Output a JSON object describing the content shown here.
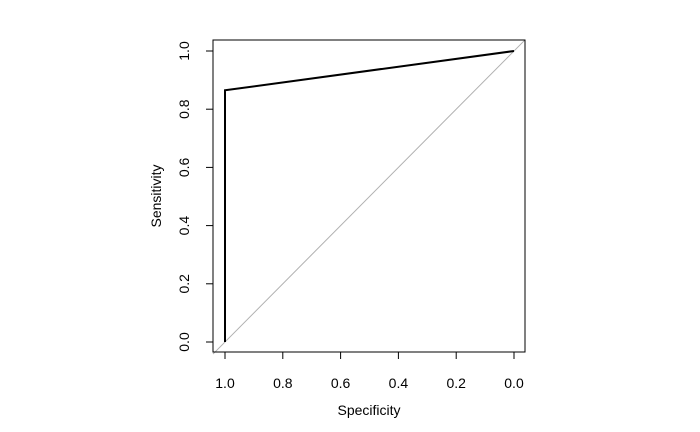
{
  "chart_data": {
    "type": "line",
    "title": "",
    "xlabel": "Specificity",
    "ylabel": "Sensitivity",
    "x_reversed": true,
    "xlim": [
      1.0,
      0.0
    ],
    "ylim": [
      0.0,
      1.0
    ],
    "grid": false,
    "x_ticks": [
      "1.0",
      "0.8",
      "0.6",
      "0.4",
      "0.2",
      "0.0"
    ],
    "y_ticks": [
      "0.0",
      "0.2",
      "0.4",
      "0.6",
      "0.8",
      "1.0"
    ],
    "series": [
      {
        "style": "solid",
        "color": "#000000",
        "x": [
          1.0,
          1.0,
          0.0
        ],
        "y": [
          0.0,
          0.865,
          1.0
        ]
      }
    ],
    "reference_line": {
      "color": "#b0b0b0",
      "x": [
        1.0,
        0.0
      ],
      "y": [
        0.0,
        1.0
      ]
    }
  }
}
